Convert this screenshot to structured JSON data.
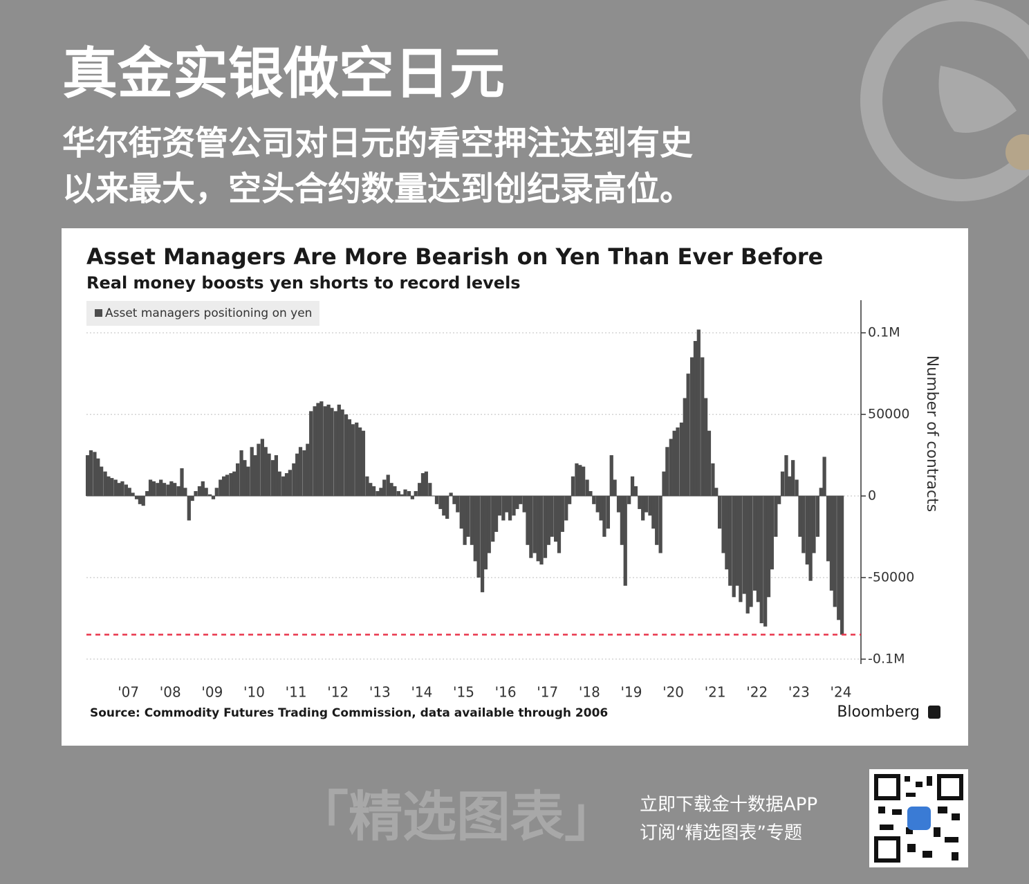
{
  "header": {
    "title": "真金实银做空日元",
    "subtitle_lines": [
      "华尔街资管公司对日元的看空押注达到有史",
      "以来最大，空头合约数量达到创纪录高位。"
    ]
  },
  "chart_data": {
    "type": "bar",
    "title": "Asset Managers Are More Bearish on Yen Than Ever Before",
    "subtitle": "Real money boosts yen shorts to record levels",
    "y_label": "Number of contracts",
    "source": "Source: Commodity Futures Trading Commission, data available through 2006",
    "logo": "Bloomberg",
    "legend": "top-left",
    "grid": true,
    "reference_line": {
      "value": -85000,
      "color": "#e8334a"
    },
    "xlim": [
      2006.4,
      2024.5
    ],
    "xticks": [
      {
        "value": 2007.5,
        "label": "'07"
      },
      {
        "value": 2008.5,
        "label": "'08"
      },
      {
        "value": 2009.5,
        "label": "'09"
      },
      {
        "value": 2010.5,
        "label": "'10"
      },
      {
        "value": 2011.5,
        "label": "'11"
      },
      {
        "value": 2012.5,
        "label": "'12"
      },
      {
        "value": 2013.5,
        "label": "'13"
      },
      {
        "value": 2014.5,
        "label": "'14"
      },
      {
        "value": 2015.5,
        "label": "'15"
      },
      {
        "value": 2016.5,
        "label": "'16"
      },
      {
        "value": 2017.5,
        "label": "'17"
      },
      {
        "value": 2018.5,
        "label": "'18"
      },
      {
        "value": 2019.5,
        "label": "'19"
      },
      {
        "value": 2020.5,
        "label": "'20"
      },
      {
        "value": 2021.5,
        "label": "'21"
      },
      {
        "value": 2022.5,
        "label": "'22"
      },
      {
        "value": 2023.5,
        "label": "'23"
      },
      {
        "value": 2024.5,
        "label": "'24"
      }
    ],
    "ylim": [
      -103000,
      120000
    ],
    "yticks": [
      {
        "value": 100000,
        "label": "0.1M"
      },
      50000,
      0,
      -50000,
      {
        "value": -100000,
        "label": "-0.1M"
      }
    ],
    "x": [
      2006.46,
      2006.54,
      2006.63,
      2006.71,
      2006.79,
      2006.88,
      2006.96,
      2007.04,
      2007.13,
      2007.21,
      2007.29,
      2007.38,
      2007.46,
      2007.54,
      2007.63,
      2007.71,
      2007.79,
      2007.88,
      2007.96,
      2008.04,
      2008.13,
      2008.21,
      2008.29,
      2008.38,
      2008.46,
      2008.54,
      2008.63,
      2008.71,
      2008.79,
      2008.88,
      2008.96,
      2009.04,
      2009.13,
      2009.21,
      2009.29,
      2009.38,
      2009.46,
      2009.54,
      2009.63,
      2009.71,
      2009.79,
      2009.88,
      2009.96,
      2010.04,
      2010.13,
      2010.21,
      2010.29,
      2010.38,
      2010.46,
      2010.54,
      2010.63,
      2010.71,
      2010.79,
      2010.88,
      2010.96,
      2011.04,
      2011.13,
      2011.21,
      2011.29,
      2011.38,
      2011.46,
      2011.54,
      2011.63,
      2011.71,
      2011.79,
      2011.88,
      2011.96,
      2012.04,
      2012.13,
      2012.21,
      2012.29,
      2012.38,
      2012.46,
      2012.54,
      2012.63,
      2012.71,
      2012.79,
      2012.88,
      2012.96,
      2013.04,
      2013.13,
      2013.21,
      2013.29,
      2013.38,
      2013.46,
      2013.54,
      2013.63,
      2013.71,
      2013.79,
      2013.88,
      2013.96,
      2014.04,
      2014.13,
      2014.21,
      2014.29,
      2014.38,
      2014.46,
      2014.54,
      2014.63,
      2014.71,
      2014.79,
      2014.88,
      2014.96,
      2015.04,
      2015.13,
      2015.21,
      2015.29,
      2015.38,
      2015.46,
      2015.54,
      2015.63,
      2015.71,
      2015.79,
      2015.88,
      2015.96,
      2016.04,
      2016.13,
      2016.21,
      2016.29,
      2016.38,
      2016.46,
      2016.54,
      2016.63,
      2016.71,
      2016.79,
      2016.88,
      2016.96,
      2017.04,
      2017.13,
      2017.21,
      2017.29,
      2017.38,
      2017.46,
      2017.54,
      2017.63,
      2017.71,
      2017.79,
      2017.88,
      2017.96,
      2018.04,
      2018.13,
      2018.21,
      2018.29,
      2018.38,
      2018.46,
      2018.54,
      2018.63,
      2018.71,
      2018.79,
      2018.88,
      2018.96,
      2019.04,
      2019.13,
      2019.21,
      2019.29,
      2019.38,
      2019.46,
      2019.54,
      2019.63,
      2019.71,
      2019.79,
      2019.88,
      2019.96,
      2020.04,
      2020.13,
      2020.21,
      2020.29,
      2020.38,
      2020.46,
      2020.54,
      2020.63,
      2020.71,
      2020.79,
      2020.88,
      2020.96,
      2021.04,
      2021.13,
      2021.21,
      2021.29,
      2021.38,
      2021.46,
      2021.54,
      2021.63,
      2021.71,
      2021.79,
      2021.88,
      2021.96,
      2022.04,
      2022.13,
      2022.21,
      2022.29,
      2022.38,
      2022.46,
      2022.54,
      2022.63,
      2022.71,
      2022.79,
      2022.88,
      2022.96,
      2023.04,
      2023.13,
      2023.21,
      2023.29,
      2023.38,
      2023.46,
      2023.54,
      2023.63,
      2023.71,
      2023.79,
      2023.88,
      2023.96,
      2024.04,
      2024.13,
      2024.21,
      2024.29,
      2024.38,
      2024.46
    ],
    "series": [
      {
        "name": "Asset managers positioning on yen",
        "color": "#4d4d4d",
        "values": [
          25000,
          28000,
          27000,
          23000,
          18000,
          15000,
          12000,
          11000,
          10000,
          8000,
          9000,
          7000,
          5000,
          2000,
          -2000,
          -5000,
          -6000,
          3000,
          10000,
          9000,
          8000,
          10000,
          8000,
          7000,
          9000,
          8000,
          6000,
          17000,
          5000,
          -15000,
          -3000,
          3000,
          6000,
          9000,
          5000,
          1000,
          -2000,
          5000,
          10000,
          12000,
          13000,
          14000,
          15000,
          20000,
          28000,
          22000,
          18000,
          30000,
          25000,
          32000,
          35000,
          30000,
          26000,
          22000,
          25000,
          15000,
          12000,
          14000,
          16000,
          20000,
          26000,
          30000,
          28000,
          32000,
          52000,
          55000,
          57000,
          58000,
          55000,
          56000,
          54000,
          52000,
          56000,
          53000,
          50000,
          47000,
          44000,
          45000,
          42000,
          40000,
          12000,
          8000,
          6000,
          3000,
          5000,
          10000,
          13000,
          8000,
          6000,
          3000,
          1000,
          4000,
          3000,
          -2000,
          3000,
          8000,
          14000,
          15000,
          8000,
          0,
          -5000,
          -8000,
          -12000,
          -14000,
          2000,
          -5000,
          -10000,
          -20000,
          -30000,
          -25000,
          -30000,
          -40000,
          -50000,
          -59000,
          -45000,
          -35000,
          -28000,
          -22000,
          -12000,
          -15000,
          -10000,
          -15000,
          -12000,
          -8000,
          -5000,
          -10000,
          -30000,
          -38000,
          -35000,
          -40000,
          -42000,
          -38000,
          -30000,
          -25000,
          -28000,
          -35000,
          -22000,
          -15000,
          -5000,
          12000,
          20000,
          19000,
          18000,
          10000,
          3000,
          -5000,
          -10000,
          -15000,
          -25000,
          -20000,
          25000,
          10000,
          -10000,
          -30000,
          -55000,
          -5000,
          12000,
          6000,
          -8000,
          -15000,
          -10000,
          -12000,
          -20000,
          -30000,
          -35000,
          15000,
          30000,
          35000,
          40000,
          42000,
          45000,
          60000,
          75000,
          85000,
          95000,
          102000,
          85000,
          60000,
          40000,
          20000,
          5000,
          -20000,
          -35000,
          -45000,
          -55000,
          -62000,
          -55000,
          -65000,
          -60000,
          -72000,
          -68000,
          -58000,
          -65000,
          -78000,
          -80000,
          -62000,
          -45000,
          -25000,
          -5000,
          15000,
          25000,
          12000,
          22000,
          10000,
          -25000,
          -35000,
          -42000,
          -52000,
          -35000,
          -25000,
          5000,
          24000,
          -40000,
          -58000,
          -68000,
          -76000,
          -85000
        ]
      }
    ]
  },
  "footer": {
    "brand": "「精选图表」",
    "lines": [
      "立即下载金十数据APP",
      "订阅“精选图表”专题"
    ]
  }
}
